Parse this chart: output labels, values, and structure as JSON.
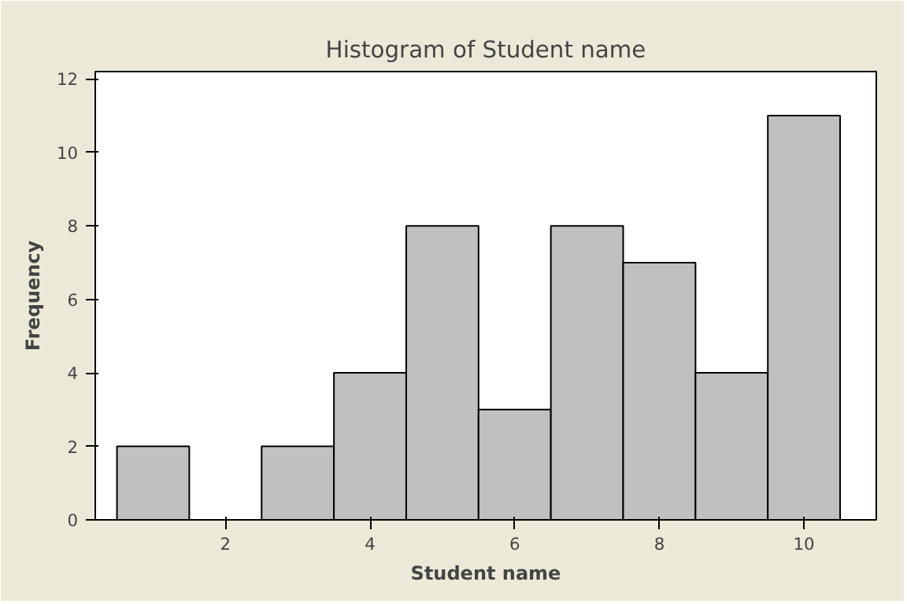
{
  "chart_data": {
    "type": "histogram",
    "title": "Histogram of Student name",
    "xlabel": "Student name",
    "ylabel": "Frequency",
    "bins": [
      0.5,
      1.5,
      2.5,
      3.5,
      4.5,
      5.5,
      6.5,
      7.5,
      8.5,
      9.5,
      10.5
    ],
    "values": [
      2,
      0,
      2,
      4,
      8,
      3,
      8,
      7,
      4,
      11
    ],
    "color": "#c0c0c0",
    "xlim": [
      0.2,
      11.0
    ],
    "xticks": [
      2,
      4,
      6,
      8,
      10
    ],
    "ylim": [
      0,
      12.2
    ],
    "yticks": [
      0,
      2,
      4,
      6,
      8,
      10,
      12
    ],
    "grid": false
  }
}
